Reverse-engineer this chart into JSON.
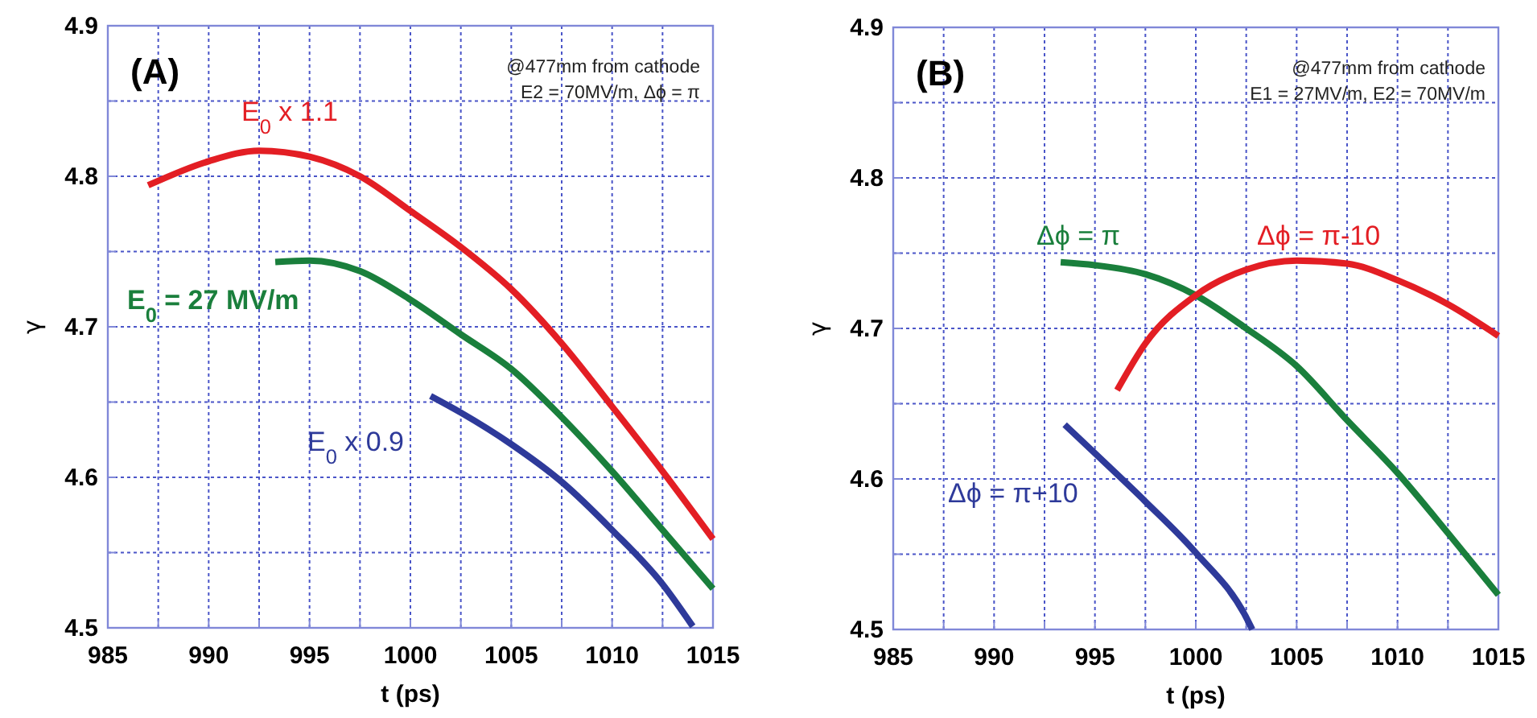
{
  "chart_data": [
    {
      "type": "line",
      "xlabel": "t (ps)",
      "ylabel": "γ",
      "annotations": [
        "(A)",
        "@477mm from cathode",
        "E2 = 70MV/m,   Δϕ = π"
      ],
      "xlim": [
        985,
        1015
      ],
      "ylim": [
        4.5,
        4.9
      ],
      "xticks": [
        985,
        {
          "value": 987.5,
          "label": null
        },
        990,
        {
          "value": 992.5,
          "label": null
        },
        995,
        {
          "value": 997.5,
          "label": null
        },
        1000,
        {
          "value": 1002.5,
          "label": null
        },
        1005,
        {
          "value": 1007.5,
          "label": null
        },
        1010,
        {
          "value": 1012.5,
          "label": null
        },
        1015
      ],
      "yticks": [
        4.5,
        {
          "value": 4.55,
          "label": null
        },
        4.6,
        {
          "value": 4.65,
          "label": null
        },
        4.7,
        {
          "value": 4.75,
          "label": null
        },
        4.8,
        {
          "value": 4.85,
          "label": null
        },
        4.9
      ],
      "grid": true,
      "line_style": "solid",
      "marker": "none",
      "series": [
        {
          "name": "E$_{0}$ x 1.1",
          "color": "#e31e24",
          "x": [
            987,
            990,
            992.5,
            995,
            997.5,
            1000,
            1002.5,
            1005,
            1007.5,
            1010,
            1012.5,
            1015
          ],
          "values": [
            4.794,
            4.81,
            4.817,
            4.813,
            4.8,
            4.777,
            4.753,
            4.725,
            4.689,
            4.647,
            4.604,
            4.559
          ]
        },
        {
          "name": "E$_{0}$ = 27 MV/m",
          "color": "#1a7f3c",
          "x": [
            993.3,
            995,
            997.5,
            1000,
            1002.5,
            1005,
            1007.5,
            1010,
            1012.5,
            1015
          ],
          "values": [
            4.743,
            4.744,
            4.737,
            4.718,
            4.695,
            4.672,
            4.64,
            4.604,
            4.565,
            4.526
          ]
        },
        {
          "name": "E$_{0}$ x 0.9",
          "color": "#2e3a9a",
          "x": [
            1001,
            1002.5,
            1005,
            1007.5,
            1010,
            1012.5,
            1014
          ],
          "values": [
            4.654,
            4.643,
            4.622,
            4.597,
            4.565,
            4.529,
            4.501
          ]
        }
      ]
    },
    {
      "type": "line",
      "xlabel": "t (ps)",
      "ylabel": "γ",
      "annotations": [
        "(B)",
        "@477mm from cathode",
        "E1 = 27MV/m,   E2 = 70MV/m"
      ],
      "xlim": [
        985,
        1015
      ],
      "ylim": [
        4.5,
        4.9
      ],
      "xticks": [
        985,
        {
          "value": 987.5,
          "label": null
        },
        990,
        {
          "value": 992.5,
          "label": null
        },
        995,
        {
          "value": 997.5,
          "label": null
        },
        1000,
        {
          "value": 1002.5,
          "label": null
        },
        1005,
        {
          "value": 1007.5,
          "label": null
        },
        1010,
        {
          "value": 1012.5,
          "label": null
        },
        1015
      ],
      "yticks": [
        4.5,
        {
          "value": 4.55,
          "label": null
        },
        4.6,
        {
          "value": 4.65,
          "label": null
        },
        4.7,
        {
          "value": 4.75,
          "label": null
        },
        4.8,
        {
          "value": 4.85,
          "label": null
        },
        4.9
      ],
      "grid": true,
      "line_style": "solid",
      "marker": "none",
      "series": [
        {
          "name": "Δϕ = π",
          "color": "#1a7f3c",
          "x": [
            993.3,
            995,
            997.5,
            1000,
            1002.5,
            1005,
            1007.5,
            1010,
            1012.5,
            1015
          ],
          "values": [
            4.744,
            4.742,
            4.736,
            4.722,
            4.7,
            4.675,
            4.639,
            4.604,
            4.564,
            4.523
          ]
        },
        {
          "name": "Δϕ = π-10",
          "color": "#e31e24",
          "x": [
            996.1,
            997.5,
            1000,
            1002.5,
            1005,
            1007.5,
            1010,
            1012.5,
            1015
          ],
          "values": [
            4.659,
            4.69,
            4.722,
            4.739,
            4.745,
            4.743,
            4.732,
            4.716,
            4.695
          ]
        },
        {
          "name": "Δϕ = π+10",
          "color": "#2e3a9a",
          "x": [
            993.5,
            995,
            997.5,
            1000,
            1002.5,
            1002.8
          ],
          "values": [
            4.636,
            4.617,
            4.585,
            4.551,
            4.508,
            4.5
          ]
        }
      ]
    }
  ]
}
